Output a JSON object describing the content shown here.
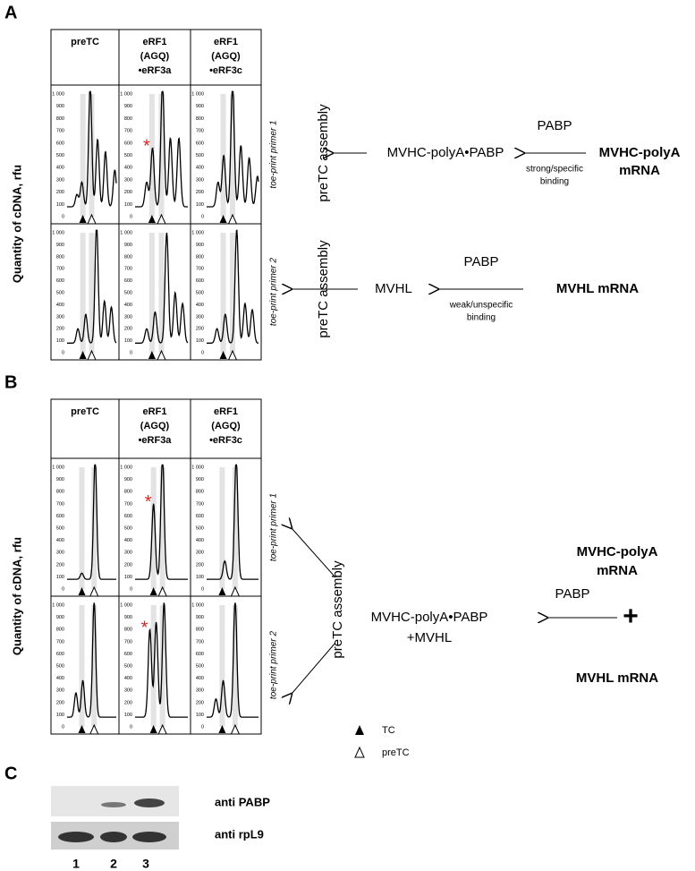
{
  "panels": [
    {
      "label": "A",
      "columns": [
        [
          "preTC"
        ],
        [
          "eRF1",
          "(AGQ)",
          "•eRF3a"
        ],
        [
          "eRF1",
          "(AGQ)",
          "•eRF3c"
        ]
      ],
      "y_axis_label": "Quantity of cDNA, rfu",
      "yticks": [
        "1 000",
        "900",
        "800",
        "700",
        "600",
        "500",
        "400",
        "300",
        "200",
        "100",
        "0"
      ],
      "row_labels": [
        "toe-print primer 1",
        "toe-print primer 2"
      ],
      "marker": "*",
      "schemes": [
        {
          "assembly": "preTC assembly",
          "complex": "MVHC-polyA•PABP",
          "factor": "PABP",
          "binding": [
            "strong/specific",
            "binding"
          ],
          "mrna": [
            "MVHC-polyA",
            "mRNA"
          ]
        },
        {
          "assembly": "preTC assembly",
          "complex": "MVHL",
          "factor": "PABP",
          "binding": [
            "weak/unspecific",
            "binding"
          ],
          "mrna": [
            "MVHL mRNA"
          ]
        }
      ]
    },
    {
      "label": "B",
      "columns": [
        [
          "preTC"
        ],
        [
          "eRF1",
          "(AGQ)",
          "•eRF3a"
        ],
        [
          "eRF1",
          "(AGQ)",
          "•eRF3c"
        ]
      ],
      "y_axis_label": "Quantity of cDNA, rfu",
      "yticks": [
        "1 000",
        "900",
        "800",
        "700",
        "600",
        "500",
        "400",
        "300",
        "200",
        "100",
        "0"
      ],
      "row_labels": [
        "toe-print primer 1",
        "toe-print primer 2"
      ],
      "marker": "*",
      "scheme": {
        "assembly": "preTC assembly",
        "complex": [
          "MVHC-polyA•PABP",
          "+MVHL"
        ],
        "factor": "PABP",
        "plus": "+",
        "mrna1": [
          "MVHC-polyA",
          "mRNA"
        ],
        "mrna2": "MVHL mRNA"
      },
      "legend": [
        "TC",
        "preTC"
      ]
    },
    {
      "label": "C",
      "blot_labels": [
        "anti PABP",
        "anti rpL9"
      ],
      "lanes": [
        "1",
        "2",
        "3"
      ]
    }
  ]
}
